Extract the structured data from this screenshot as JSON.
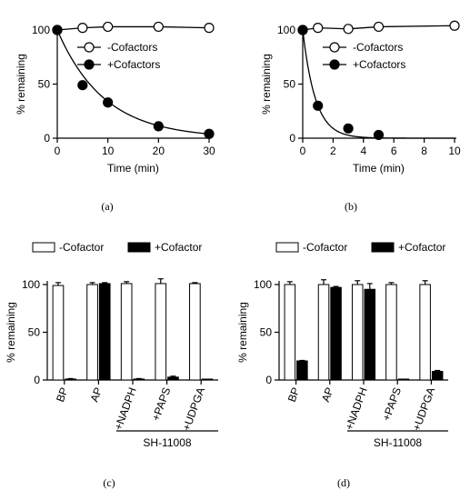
{
  "chart_data": [
    {
      "id": "a",
      "type": "scatter",
      "caption": "(a)",
      "xlabel": "Time (min)",
      "ylabel": "% remaining",
      "xlim": [
        0,
        30
      ],
      "ylim": [
        0,
        100
      ],
      "xticks": [
        0,
        10,
        20,
        30
      ],
      "yticks": [
        0,
        50,
        100
      ],
      "legend_position": "top-right",
      "fit": {
        "series": "+Cofactors",
        "type": "exponential-decay",
        "k": 0.108
      },
      "series": [
        {
          "name": "-Cofactors",
          "marker": "open-circle",
          "connected": true,
          "x": [
            0,
            5,
            10,
            20,
            30
          ],
          "y": [
            100,
            102,
            103,
            103,
            102
          ]
        },
        {
          "name": "+Cofactors",
          "marker": "filled-circle",
          "connected": false,
          "x": [
            0,
            5,
            10,
            20,
            30
          ],
          "y": [
            100,
            49,
            33,
            11,
            4
          ]
        }
      ]
    },
    {
      "id": "b",
      "type": "scatter",
      "caption": "(b)",
      "xlabel": "Time (min)",
      "ylabel": "% remaining",
      "xlim": [
        0,
        10
      ],
      "ylim": [
        0,
        100
      ],
      "xticks": [
        0,
        2,
        4,
        6,
        8,
        10
      ],
      "yticks": [
        0,
        50,
        100
      ],
      "legend_position": "top-right",
      "fit": {
        "series": "+Cofactors",
        "type": "exponential-decay",
        "k": 1.2
      },
      "series": [
        {
          "name": "-Cofactors",
          "marker": "open-circle",
          "connected": true,
          "x": [
            0,
            1,
            3,
            5,
            10
          ],
          "y": [
            100,
            102,
            101,
            103,
            104
          ]
        },
        {
          "name": "+Cofactors",
          "marker": "filled-circle",
          "connected": false,
          "x": [
            0,
            1,
            3,
            5
          ],
          "y": [
            100,
            30,
            9,
            3
          ]
        }
      ]
    },
    {
      "id": "c",
      "type": "bar",
      "caption": "(c)",
      "ylabel": "% remaining",
      "ylim": [
        0,
        100
      ],
      "yticks": [
        0,
        50,
        100
      ],
      "legend_position": "top",
      "categories": [
        "BP",
        "AP",
        "+NADPH",
        "+PAPS",
        "+UDPGA"
      ],
      "group_label": "SH-11008",
      "series": [
        {
          "name": "-Cofactor",
          "fill": "#ffffff",
          "values": [
            99,
            100,
            101,
            101,
            101
          ],
          "errors": [
            3,
            2,
            2,
            5,
            1
          ]
        },
        {
          "name": "+Cofactor",
          "fill": "#000000",
          "values": [
            1,
            101,
            1,
            3,
            0.5
          ],
          "errors": [
            0.5,
            1,
            0.5,
            1,
            0.3
          ]
        }
      ]
    },
    {
      "id": "d",
      "type": "bar",
      "caption": "(d)",
      "ylabel": "% remaining",
      "ylim": [
        0,
        100
      ],
      "yticks": [
        0,
        50,
        100
      ],
      "legend_position": "top",
      "categories": [
        "BP",
        "AP",
        "+NADPH",
        "+PAPS",
        "+UDPGA"
      ],
      "group_label": "SH-11008",
      "series": [
        {
          "name": "-Cofactor",
          "fill": "#ffffff",
          "values": [
            100,
            100,
            100,
            100,
            100
          ],
          "errors": [
            3,
            5,
            4,
            2,
            4
          ]
        },
        {
          "name": "+Cofactor",
          "fill": "#000000",
          "values": [
            20,
            97,
            95,
            0.5,
            9
          ],
          "errors": [
            0.5,
            1,
            6,
            0.3,
            1
          ]
        }
      ]
    }
  ]
}
